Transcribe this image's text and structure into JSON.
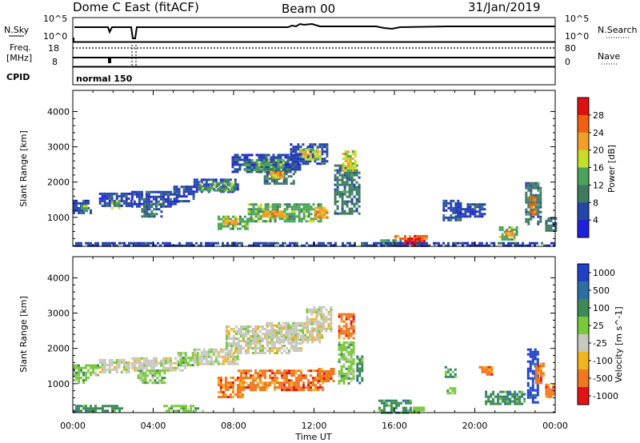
{
  "header": {
    "title": "Dome C East (fitACF)",
    "beam": "Beam 00",
    "date": "31/Jan/2019"
  },
  "status_panel": {
    "nsky_label": "N.Sky",
    "nsearch_label": "N.Search",
    "nsky_ticks": [
      "10^5",
      "10^0"
    ],
    "nsearch_ticks": [
      "10^5",
      "10^0"
    ],
    "freq_label_1": "Freq.",
    "freq_label_2": "[MHz]",
    "freq_ticks": [
      "18",
      "8"
    ],
    "nave_label": "Nave",
    "nave_ticks": [
      "80",
      "0"
    ],
    "cpid_label": "CPID",
    "cpid_value": "normal 150"
  },
  "axes": {
    "x_ticks": [
      "00:00",
      "04:00",
      "08:00",
      "12:00",
      "16:00",
      "20:00",
      "00:00"
    ],
    "xlabel": "Time UT",
    "ylabel": "Slant Range [km]",
    "y_ticks": [
      "1000",
      "2000",
      "3000",
      "4000"
    ]
  },
  "chart_data": [
    {
      "type": "heatmap",
      "title": "",
      "xlabel": "Time UT",
      "ylabel": "Slant Range [km]",
      "x_range_hours": [
        0,
        24
      ],
      "y_range_km": [
        180,
        4600
      ],
      "colorbar_label": "Power [dB]",
      "colorbar_ticks": [
        "4",
        "8",
        "12",
        "16",
        "20",
        "24",
        "28"
      ],
      "colorbar_range": [
        0,
        30
      ],
      "colors": [
        "#1f1fe0",
        "#2545a8",
        "#3e7a60",
        "#4aa35a",
        "#c8dc28",
        "#f0a028",
        "#f06010",
        "#e01010"
      ],
      "cells": [
        [
          0.0,
          0.9,
          1100,
          1500,
          5
        ],
        [
          0.4,
          0.7,
          1150,
          1350,
          14
        ],
        [
          1.3,
          2.9,
          1300,
          1700,
          7
        ],
        [
          1.9,
          2.3,
          1250,
          1500,
          13
        ],
        [
          2.9,
          5.2,
          1300,
          1750,
          6
        ],
        [
          3.4,
          4.4,
          1000,
          1400,
          11
        ],
        [
          5.0,
          6.0,
          1450,
          1900,
          4
        ],
        [
          6.0,
          8.2,
          1700,
          2100,
          5
        ],
        [
          6.3,
          8.0,
          1750,
          2000,
          12
        ],
        [
          7.9,
          11.3,
          2300,
          2800,
          4
        ],
        [
          8.5,
          10.5,
          2350,
          2650,
          14
        ],
        [
          9.5,
          11.0,
          1950,
          2400,
          11
        ],
        [
          9.8,
          10.4,
          2100,
          2300,
          20
        ],
        [
          10.8,
          12.6,
          2500,
          3100,
          6
        ],
        [
          11.3,
          12.3,
          2650,
          2950,
          15
        ],
        [
          7.2,
          8.7,
          700,
          1050,
          13
        ],
        [
          7.5,
          8.1,
          800,
          1000,
          20
        ],
        [
          8.7,
          12.3,
          900,
          1400,
          12
        ],
        [
          9.4,
          10.6,
          1000,
          1200,
          22
        ],
        [
          12.0,
          12.6,
          1000,
          1300,
          21
        ],
        [
          13.0,
          14.2,
          1100,
          2500,
          8
        ],
        [
          13.4,
          14.1,
          2300,
          2900,
          16
        ],
        [
          15.3,
          16.3,
          220,
          380,
          14
        ],
        [
          16.0,
          17.6,
          200,
          500,
          26
        ],
        [
          16.5,
          17.2,
          250,
          420,
          30
        ],
        [
          18.4,
          19.3,
          900,
          1500,
          6
        ],
        [
          19.0,
          20.5,
          1000,
          1400,
          5
        ],
        [
          21.2,
          22.1,
          400,
          750,
          13
        ],
        [
          21.5,
          21.9,
          450,
          650,
          22
        ],
        [
          22.5,
          23.3,
          800,
          2000,
          10
        ],
        [
          22.7,
          23.0,
          1100,
          1600,
          24
        ],
        [
          23.5,
          24.0,
          600,
          1000,
          8
        ],
        [
          0.0,
          24.0,
          200,
          300,
          5
        ]
      ]
    },
    {
      "type": "heatmap",
      "title": "",
      "xlabel": "Time UT",
      "ylabel": "Slant Range [km]",
      "x_range_hours": [
        0,
        24
      ],
      "y_range_km": [
        180,
        4600
      ],
      "colorbar_label": "Velocity [m s^-1]",
      "colorbar_ticks": [
        "1000",
        "500",
        "100",
        "25",
        "-25",
        "-100",
        "-500",
        "-1000"
      ],
      "colors": [
        "#2040c8",
        "#2a6fa0",
        "#3c8a55",
        "#7ac83c",
        "#c8c8c0",
        "#f0b41e",
        "#f0781e",
        "#e01414"
      ],
      "cells": [
        [
          0.0,
          1.3,
          1250,
          1550,
          3
        ],
        [
          0.0,
          0.8,
          1000,
          1200,
          3
        ],
        [
          1.3,
          2.8,
          1350,
          1700,
          4
        ],
        [
          2.9,
          5.6,
          1400,
          1750,
          4
        ],
        [
          3.2,
          4.6,
          1050,
          1400,
          3
        ],
        [
          5.2,
          6.2,
          1500,
          1900,
          3
        ],
        [
          6.0,
          8.2,
          1550,
          2000,
          4
        ],
        [
          7.6,
          11.4,
          1900,
          2650,
          4
        ],
        [
          9.6,
          12.4,
          2200,
          2750,
          4
        ],
        [
          11.6,
          12.8,
          2500,
          3200,
          4
        ],
        [
          7.2,
          8.4,
          650,
          1200,
          6
        ],
        [
          8.2,
          12.4,
          800,
          1400,
          6
        ],
        [
          12.2,
          13.0,
          1100,
          1450,
          6
        ],
        [
          13.2,
          14.0,
          1000,
          2200,
          3
        ],
        [
          13.2,
          14.0,
          2300,
          3000,
          6
        ],
        [
          14.1,
          14.4,
          1000,
          1800,
          2
        ],
        [
          15.2,
          16.8,
          200,
          550,
          2
        ],
        [
          16.8,
          17.5,
          200,
          350,
          3
        ],
        [
          18.5,
          19.0,
          1200,
          1500,
          2
        ],
        [
          18.6,
          19.0,
          700,
          900,
          3
        ],
        [
          20.5,
          22.5,
          400,
          800,
          2
        ],
        [
          20.2,
          20.8,
          1250,
          1500,
          6
        ],
        [
          22.6,
          23.1,
          500,
          2000,
          0
        ],
        [
          23.0,
          23.4,
          1000,
          1600,
          6
        ],
        [
          23.5,
          23.9,
          650,
          1000,
          6
        ],
        [
          0.0,
          2.5,
          250,
          400,
          2
        ],
        [
          4.5,
          6.5,
          250,
          400,
          3
        ]
      ]
    }
  ]
}
